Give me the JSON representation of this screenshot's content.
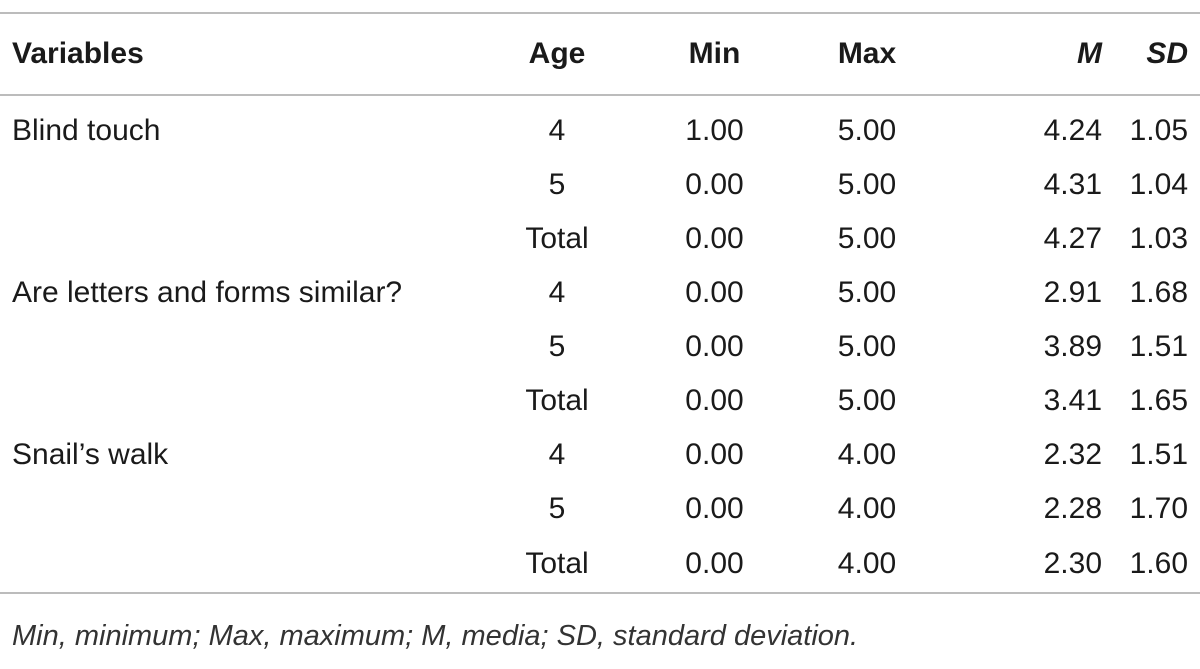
{
  "table": {
    "headers": {
      "variables": "Variables",
      "age": "Age",
      "min": "Min",
      "max": "Max",
      "m": "M",
      "sd": "SD"
    },
    "rows": [
      {
        "variable": "Blind touch",
        "age": "4",
        "min": "1.00",
        "max": "5.00",
        "m": "4.24",
        "sd": "1.05"
      },
      {
        "variable": "",
        "age": "5",
        "min": "0.00",
        "max": "5.00",
        "m": "4.31",
        "sd": "1.04"
      },
      {
        "variable": "",
        "age": "Total",
        "min": "0.00",
        "max": "5.00",
        "m": "4.27",
        "sd": "1.03"
      },
      {
        "variable": "Are letters and forms similar?",
        "age": "4",
        "min": "0.00",
        "max": "5.00",
        "m": "2.91",
        "sd": "1.68"
      },
      {
        "variable": "",
        "age": "5",
        "min": "0.00",
        "max": "5.00",
        "m": "3.89",
        "sd": "1.51"
      },
      {
        "variable": "",
        "age": "Total",
        "min": "0.00",
        "max": "5.00",
        "m": "3.41",
        "sd": "1.65"
      },
      {
        "variable": "Snail’s walk",
        "age": "4",
        "min": "0.00",
        "max": "4.00",
        "m": "2.32",
        "sd": "1.51"
      },
      {
        "variable": "",
        "age": "5",
        "min": "0.00",
        "max": "4.00",
        "m": "2.28",
        "sd": "1.70"
      },
      {
        "variable": "",
        "age": "Total",
        "min": "0.00",
        "max": "4.00",
        "m": "2.30",
        "sd": "1.60"
      }
    ]
  },
  "footnote": "Min, minimum; Max, maximum; M, media; SD, standard deviation."
}
